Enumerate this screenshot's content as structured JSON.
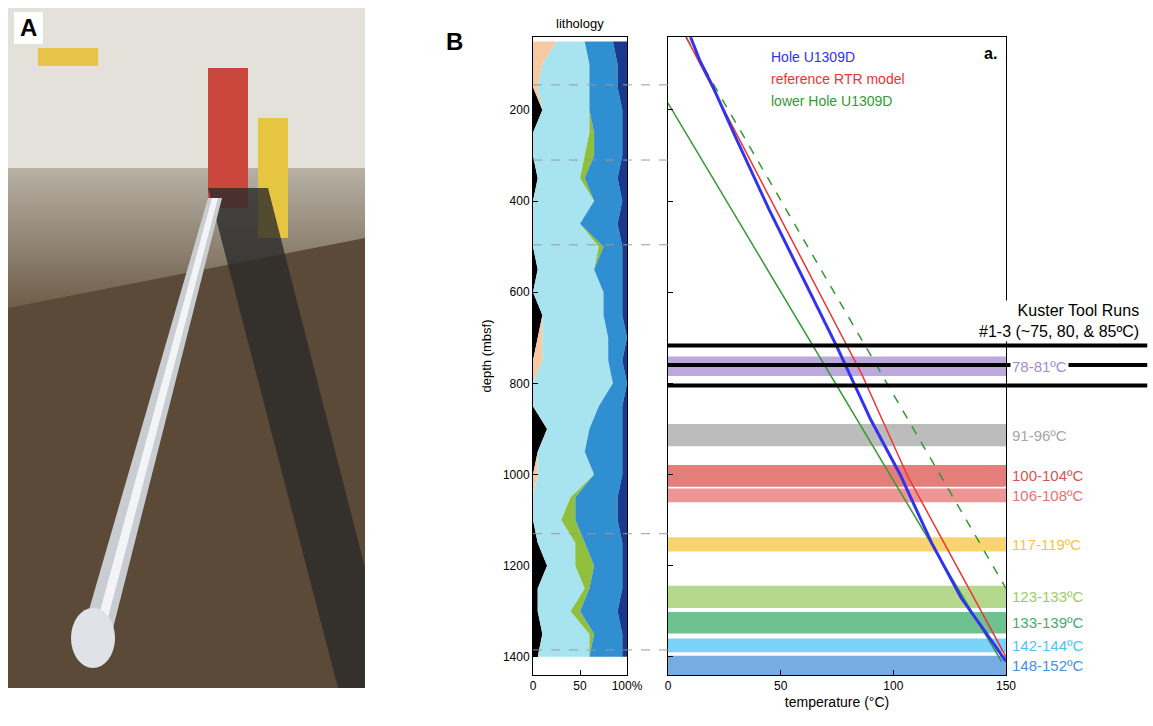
{
  "panels": [
    {
      "letter": "A"
    },
    {
      "letter": "B"
    }
  ],
  "chart_data": [
    {
      "type": "area",
      "title": "lithology",
      "orientation": "horizontal",
      "stacked": true,
      "grid": false,
      "y_label": "depth (mbsf)",
      "xlim": [
        0,
        100
      ],
      "xticks": [
        0,
        50,
        {
          "value": 100,
          "label": "100%"
        }
      ],
      "ylim": [
        1440,
        40
      ],
      "yticks": [
        200,
        400,
        600,
        800,
        1000,
        1200,
        1400
      ],
      "y": [
        50,
        100,
        150,
        200,
        250,
        300,
        350,
        400,
        450,
        500,
        550,
        600,
        650,
        700,
        750,
        800,
        850,
        900,
        950,
        1000,
        1050,
        1100,
        1150,
        1200,
        1250,
        1300,
        1350,
        1400
      ],
      "series": [
        {
          "color": "#000000",
          "values": [
            0,
            0,
            0,
            10,
            0,
            0,
            5,
            0,
            0,
            0,
            5,
            0,
            10,
            5,
            0,
            0,
            0,
            15,
            5,
            0,
            0,
            0,
            5,
            15,
            5,
            5,
            10,
            5
          ]
        },
        {
          "color": "#f7c9a0",
          "values": [
            25,
            10,
            5,
            0,
            0,
            0,
            0,
            0,
            0,
            0,
            0,
            0,
            0,
            5,
            10,
            0,
            0,
            0,
            0,
            5,
            0,
            0,
            0,
            0,
            0,
            0,
            0,
            0
          ]
        },
        {
          "color": "#a8e4ef",
          "values": [
            30,
            50,
            55,
            50,
            60,
            55,
            45,
            65,
            50,
            70,
            60,
            75,
            65,
            70,
            70,
            85,
            70,
            45,
            50,
            60,
            40,
            30,
            40,
            30,
            50,
            35,
            50,
            55
          ]
        },
        {
          "color": "#8fbf3c",
          "values": [
            0,
            0,
            0,
            0,
            5,
            10,
            5,
            0,
            0,
            5,
            0,
            0,
            0,
            0,
            0,
            0,
            0,
            0,
            0,
            0,
            5,
            15,
            10,
            20,
            5,
            10,
            5,
            0
          ]
        },
        {
          "color": "#2f8fd0",
          "values": [
            30,
            30,
            30,
            35,
            30,
            30,
            35,
            30,
            40,
            20,
            30,
            20,
            20,
            20,
            15,
            15,
            25,
            35,
            40,
            30,
            45,
            45,
            40,
            30,
            35,
            40,
            30,
            35
          ]
        },
        {
          "color": "#173a8c",
          "values": [
            15,
            10,
            10,
            5,
            5,
            5,
            10,
            5,
            10,
            5,
            5,
            5,
            5,
            0,
            5,
            0,
            5,
            5,
            5,
            5,
            10,
            10,
            5,
            5,
            5,
            10,
            5,
            5
          ]
        }
      ],
      "reference_depths": [
        145,
        310,
        496,
        1130,
        1385
      ]
    },
    {
      "type": "line",
      "title": "a.",
      "grid": false,
      "tick_labels": "x",
      "legend": "upper right",
      "x_label": "temperature (°C)",
      "xlim": [
        0,
        150
      ],
      "xticks": [
        0,
        50,
        100,
        150
      ],
      "ylim": [
        1440,
        40
      ],
      "yticks": [
        200,
        400,
        600,
        800,
        1000,
        1200,
        1400
      ],
      "series": [
        {
          "name": "Hole U1309D",
          "color": "#3333ee",
          "line_style": "solid",
          "x": [
            10,
            14,
            20,
            30,
            45,
            60,
            75,
            90,
            103,
            117,
            130,
            140,
            150
          ],
          "y": [
            40,
            90,
            150,
            260,
            420,
            570,
            720,
            880,
            1000,
            1150,
            1270,
            1340,
            1410
          ]
        },
        {
          "name": "reference RTR model",
          "color": "#ee3333",
          "line_style": "solid",
          "x": [
            8,
            45,
            86,
            106,
            128,
            150
          ],
          "y": [
            40,
            390,
            780,
            1000,
            1200,
            1400
          ]
        },
        {
          "name": "lower Hole U1309D",
          "color": "#339933",
          "line_style": "solid",
          "x": [
            0,
            148
          ],
          "y": [
            185,
            1410
          ]
        },
        {
          "color": "#339933",
          "line_style": "dashed",
          "x": [
            8,
            150
          ],
          "y": [
            40,
            1250
          ]
        }
      ],
      "runs": {
        "label_lines": [
          "Kuster Tool Runs",
          "#1-3 (~75, 80, & 85ºC)"
        ],
        "depths": [
          717,
          760,
          805
        ]
      },
      "bands": [
        {
          "label": "78-81ºC",
          "color": "#a78bd0",
          "depth": [
            741,
            784
          ]
        },
        {
          "label": "91-96ºC",
          "color": "#a6a6a6",
          "depth": [
            889,
            938
          ]
        },
        {
          "label": "100-104ºC",
          "color": "#d9534f",
          "depth": [
            979,
            1027
          ]
        },
        {
          "label": "106-108ºC",
          "color": "#e57373",
          "depth": [
            1031,
            1061
          ]
        },
        {
          "label": "117-119ºC",
          "color": "#f5c542",
          "depth": [
            1138,
            1169
          ]
        },
        {
          "label": "123-133ºC",
          "color": "#9ccc65",
          "depth": [
            1244,
            1293
          ]
        },
        {
          "label": "133-139ºC",
          "color": "#3fae6a",
          "depth": [
            1302,
            1349
          ]
        },
        {
          "label": "142-144ºC",
          "color": "#4fc3f7",
          "depth": [
            1360,
            1390
          ]
        },
        {
          "label": "148-152ºC",
          "color": "#4a90d9",
          "depth": [
            1398,
            1440
          ]
        }
      ]
    }
  ]
}
